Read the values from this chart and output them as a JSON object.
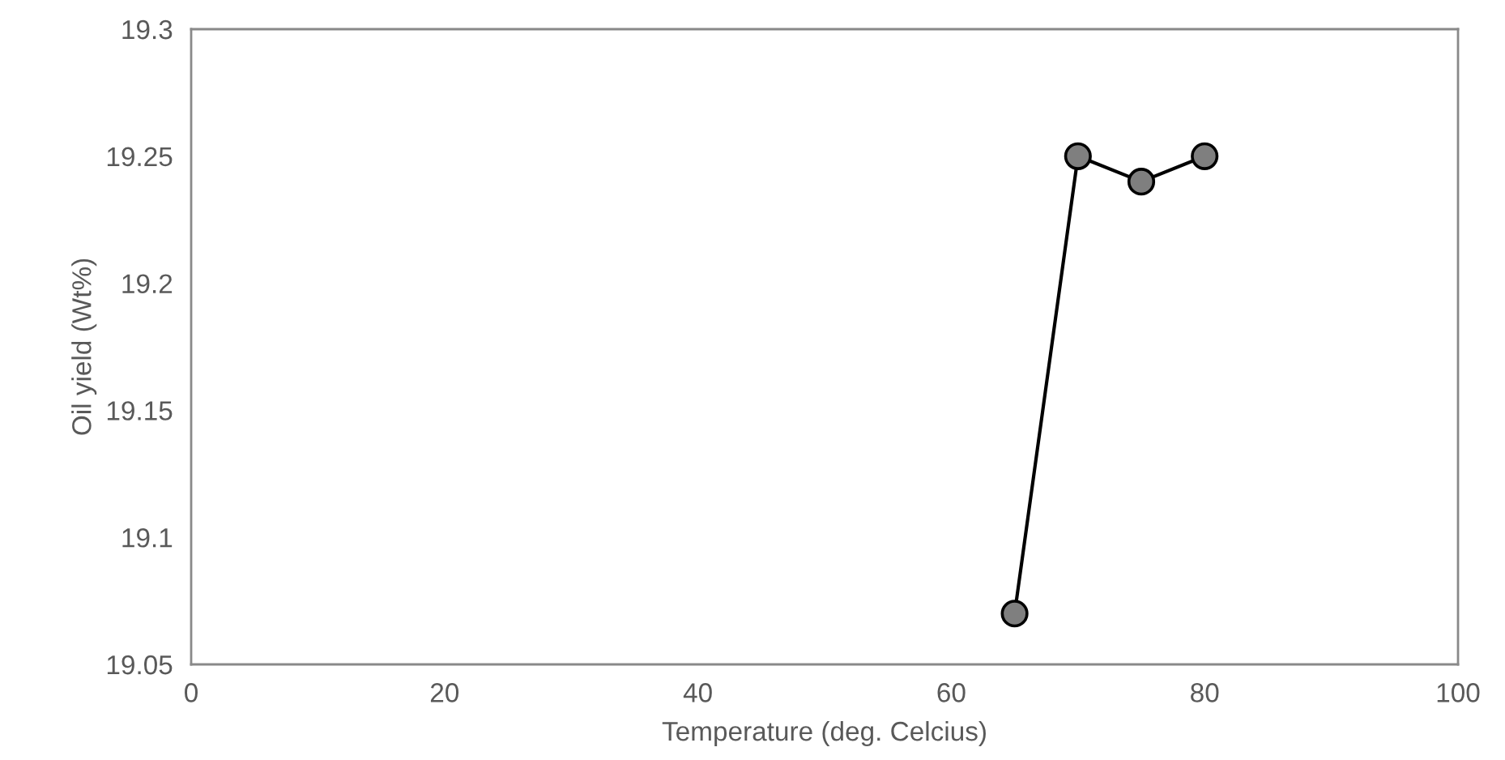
{
  "chart_data": {
    "type": "line",
    "xlabel": "Temperature (deg. Celcius)",
    "ylabel": "Oil yield (Wt%)",
    "x": [
      65,
      70,
      75,
      80
    ],
    "series": [
      {
        "color": "#000000",
        "values": [
          19.07,
          19.25,
          19.24,
          19.25
        ]
      }
    ],
    "xlim": [
      0,
      100
    ],
    "xticks": [
      0,
      20,
      40,
      60,
      80,
      100
    ],
    "ylim": [
      19.05,
      19.3
    ],
    "yticks": [
      19.05,
      19.1,
      19.15,
      19.2,
      19.25,
      19.3
    ],
    "grid": false,
    "marker": "circle",
    "line_style": "solid",
    "legend": false
  }
}
